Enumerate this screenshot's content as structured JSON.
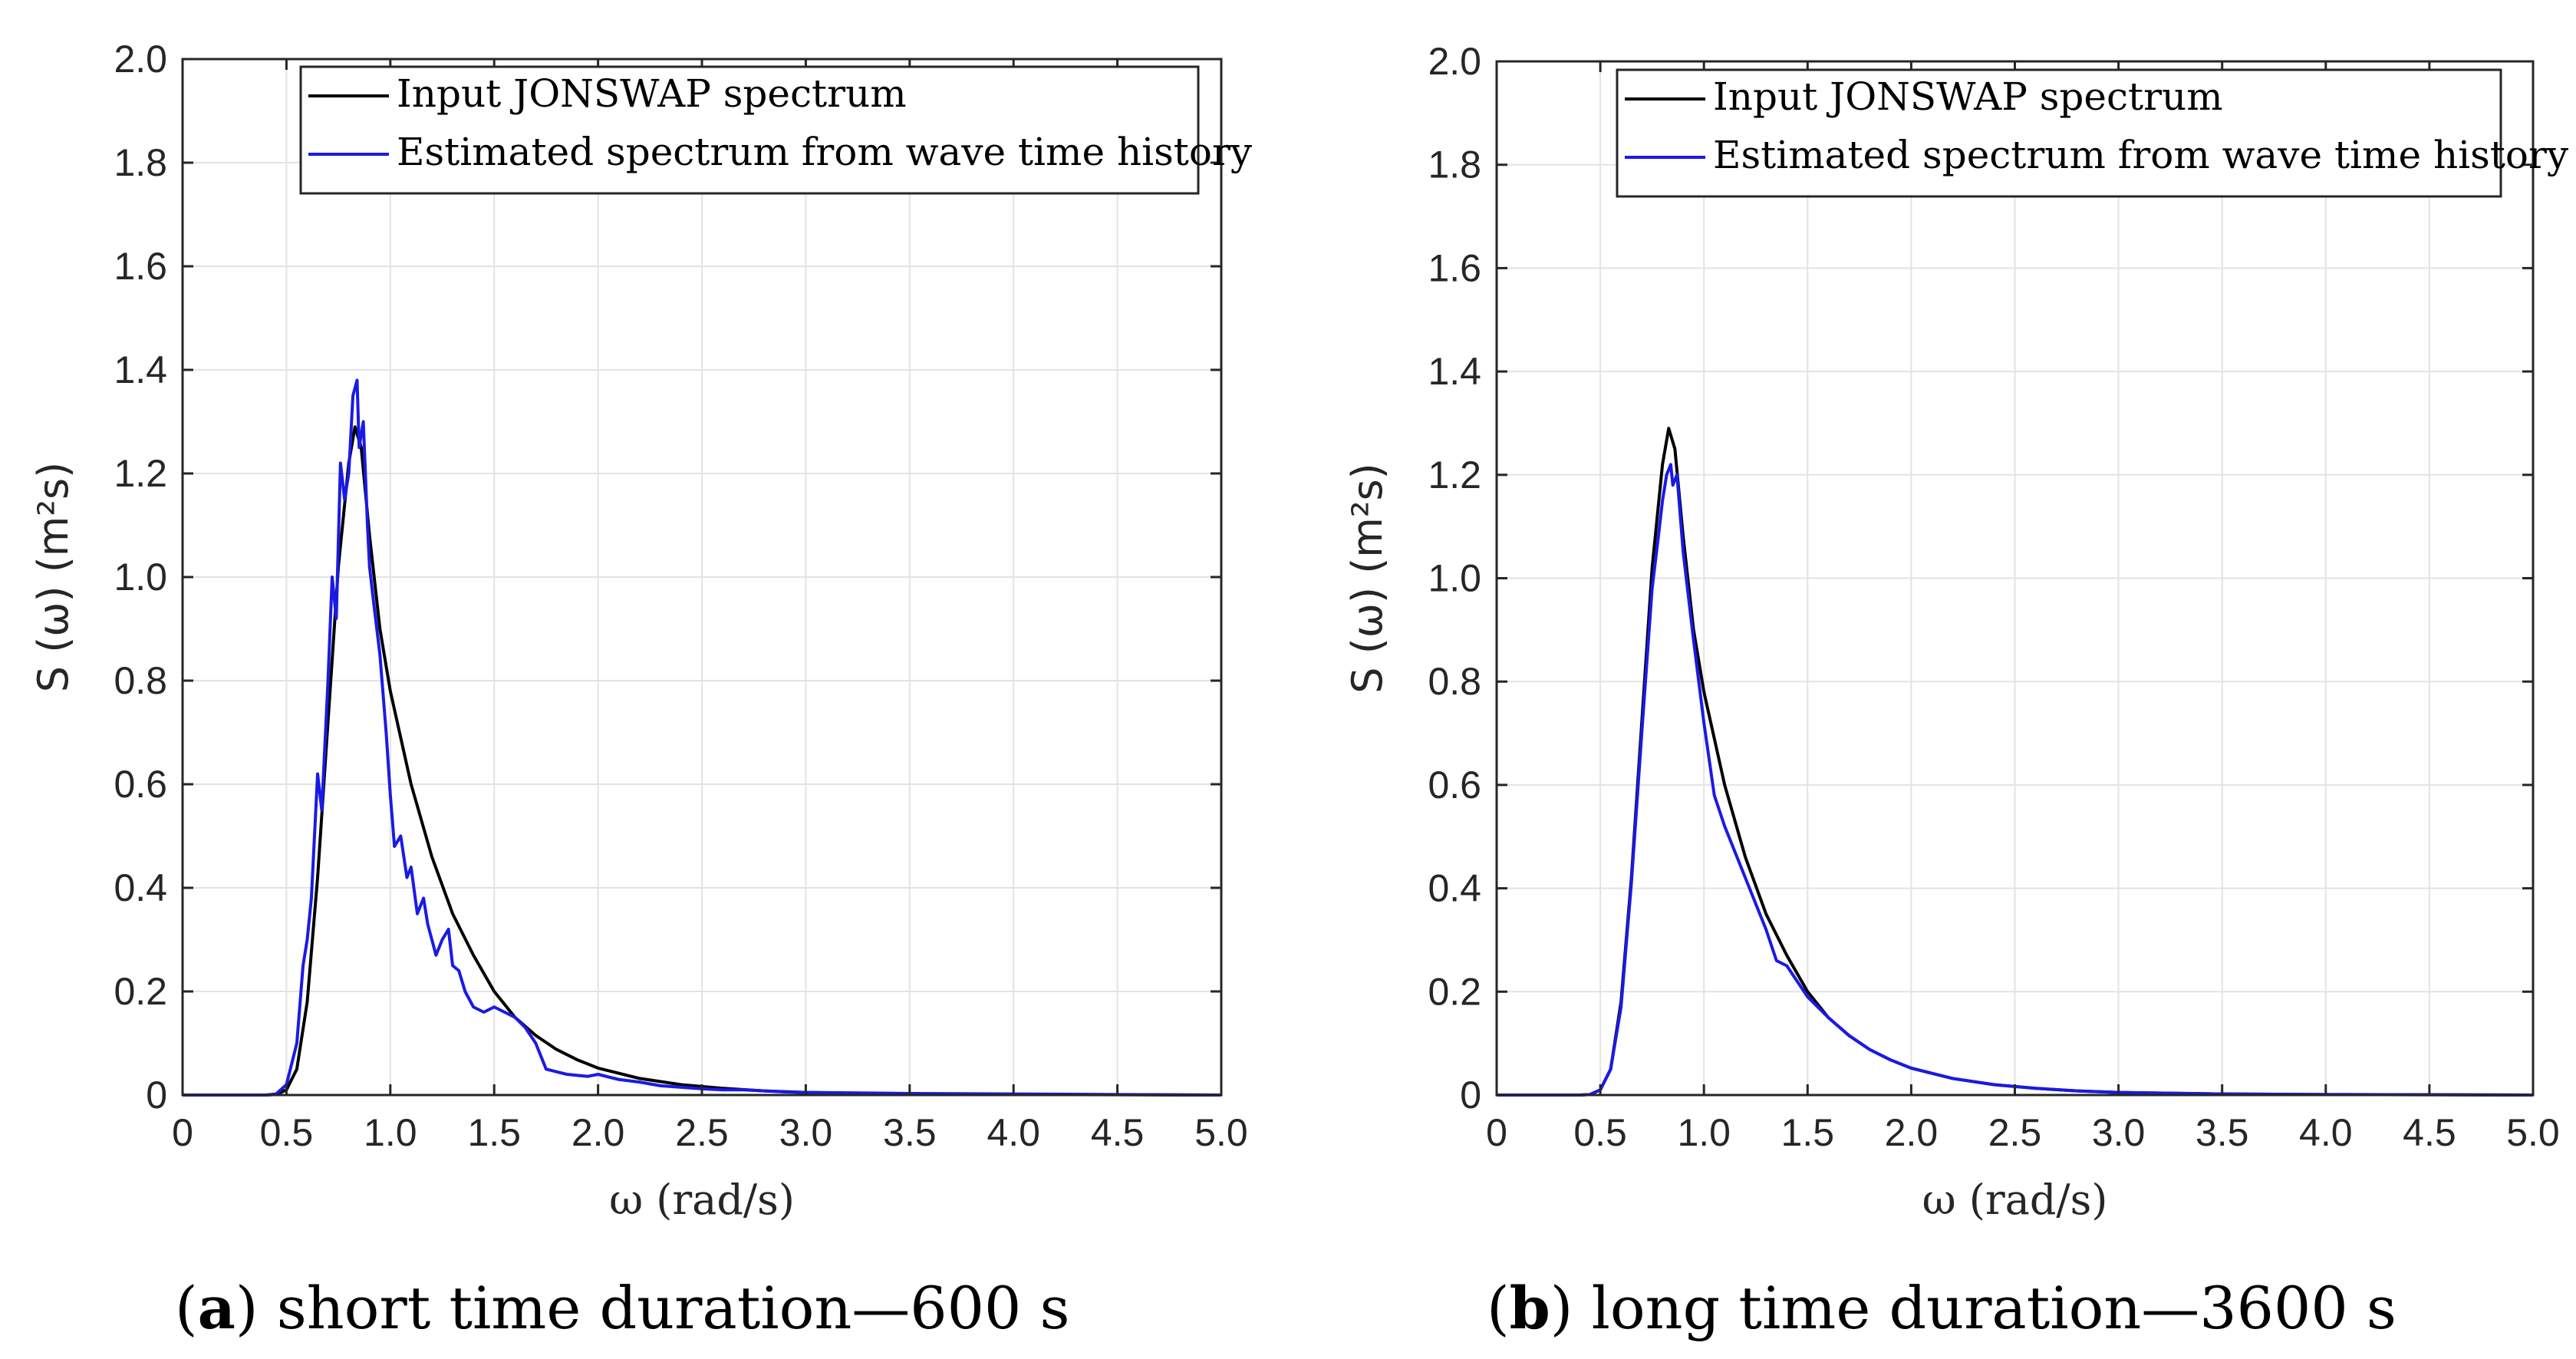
{
  "chart_data": [
    {
      "type": "line",
      "panel": "a",
      "ylabel": "S (ω) (m²s)",
      "xlabel": "ω (rad/s)",
      "xlim": [
        0,
        5.0
      ],
      "ylim": [
        0,
        2.0
      ],
      "grid": true,
      "legend_position": "top-right",
      "x_ticks": [
        "0",
        "0.5",
        "1.0",
        "1.5",
        "2.0",
        "2.5",
        "3.0",
        "3.5",
        "4.0",
        "4.5",
        "5.0"
      ],
      "y_ticks": [
        "0",
        "0.2",
        "0.4",
        "0.6",
        "0.8",
        "1.0",
        "1.2",
        "1.4",
        "1.6",
        "1.8",
        "2.0"
      ],
      "series": [
        {
          "name": "Input JONSWAP spectrum",
          "color": "#000000",
          "x": [
            0,
            0.4,
            0.45,
            0.5,
            0.55,
            0.6,
            0.65,
            0.7,
            0.75,
            0.8,
            0.83,
            0.86,
            0.9,
            0.95,
            1.0,
            1.1,
            1.2,
            1.3,
            1.4,
            1.5,
            1.6,
            1.7,
            1.8,
            1.9,
            2.0,
            2.2,
            2.4,
            2.6,
            2.8,
            3.0,
            3.5,
            4.0,
            4.5,
            5.0
          ],
          "y": [
            0,
            0,
            0.001,
            0.01,
            0.05,
            0.18,
            0.42,
            0.72,
            1.02,
            1.22,
            1.29,
            1.25,
            1.08,
            0.9,
            0.78,
            0.6,
            0.46,
            0.35,
            0.27,
            0.2,
            0.15,
            0.115,
            0.088,
            0.068,
            0.052,
            0.032,
            0.02,
            0.013,
            0.008,
            0.005,
            0.002,
            0.001,
            0.0005,
            0
          ]
        },
        {
          "name": "Estimated spectrum from wave time history",
          "color": "#1a1ae6",
          "x": [
            0,
            0.4,
            0.45,
            0.5,
            0.55,
            0.58,
            0.6,
            0.62,
            0.65,
            0.67,
            0.7,
            0.72,
            0.74,
            0.76,
            0.78,
            0.8,
            0.82,
            0.84,
            0.85,
            0.87,
            0.89,
            0.9,
            0.92,
            0.95,
            0.98,
            1.0,
            1.02,
            1.05,
            1.08,
            1.1,
            1.13,
            1.16,
            1.18,
            1.2,
            1.22,
            1.25,
            1.28,
            1.3,
            1.33,
            1.36,
            1.4,
            1.45,
            1.5,
            1.55,
            1.6,
            1.65,
            1.7,
            1.75,
            1.8,
            1.85,
            1.9,
            1.95,
            2.0,
            2.05,
            2.1,
            2.2,
            2.3,
            2.4,
            2.5,
            2.6,
            2.7,
            2.8,
            2.9,
            3.0,
            3.5,
            4.0,
            4.5,
            5.0
          ],
          "y": [
            0,
            0,
            0.002,
            0.02,
            0.1,
            0.25,
            0.3,
            0.38,
            0.62,
            0.55,
            0.8,
            1.0,
            0.92,
            1.22,
            1.15,
            1.2,
            1.35,
            1.38,
            1.25,
            1.3,
            1.1,
            1.02,
            0.95,
            0.85,
            0.7,
            0.58,
            0.48,
            0.5,
            0.42,
            0.44,
            0.35,
            0.38,
            0.33,
            0.3,
            0.27,
            0.3,
            0.32,
            0.25,
            0.24,
            0.2,
            0.17,
            0.16,
            0.17,
            0.16,
            0.15,
            0.13,
            0.1,
            0.05,
            0.045,
            0.04,
            0.038,
            0.036,
            0.04,
            0.035,
            0.03,
            0.025,
            0.018,
            0.015,
            0.012,
            0.01,
            0.01,
            0.008,
            0.006,
            0.005,
            0.003,
            0.002,
            0.001,
            0
          ]
        }
      ],
      "caption_label": "a",
      "caption_text": " short time duration—600 s"
    },
    {
      "type": "line",
      "panel": "b",
      "ylabel": "S (ω) (m²s)",
      "xlabel": "ω (rad/s)",
      "xlim": [
        0,
        5.0
      ],
      "ylim": [
        0,
        2.0
      ],
      "grid": true,
      "legend_position": "top-right",
      "x_ticks": [
        "0",
        "0.5",
        "1.0",
        "1.5",
        "2.0",
        "2.5",
        "3.0",
        "3.5",
        "4.0",
        "4.5",
        "5.0"
      ],
      "y_ticks": [
        "0",
        "0.2",
        "0.4",
        "0.6",
        "0.8",
        "1.0",
        "1.2",
        "1.4",
        "1.6",
        "1.8",
        "2.0"
      ],
      "series": [
        {
          "name": "Input JONSWAP spectrum",
          "color": "#000000",
          "x": [
            0,
            0.4,
            0.45,
            0.5,
            0.55,
            0.6,
            0.65,
            0.7,
            0.75,
            0.8,
            0.83,
            0.86,
            0.9,
            0.95,
            1.0,
            1.1,
            1.2,
            1.3,
            1.4,
            1.5,
            1.6,
            1.7,
            1.8,
            1.9,
            2.0,
            2.2,
            2.4,
            2.6,
            2.8,
            3.0,
            3.5,
            4.0,
            4.5,
            5.0
          ],
          "y": [
            0,
            0,
            0.001,
            0.01,
            0.05,
            0.18,
            0.42,
            0.72,
            1.02,
            1.22,
            1.29,
            1.25,
            1.08,
            0.9,
            0.78,
            0.6,
            0.46,
            0.35,
            0.27,
            0.2,
            0.15,
            0.115,
            0.088,
            0.068,
            0.052,
            0.032,
            0.02,
            0.013,
            0.008,
            0.005,
            0.002,
            0.001,
            0.0005,
            0
          ]
        },
        {
          "name": "Estimated spectrum from wave time history",
          "color": "#1a1ae6",
          "x": [
            0,
            0.4,
            0.45,
            0.5,
            0.55,
            0.6,
            0.65,
            0.7,
            0.75,
            0.78,
            0.8,
            0.82,
            0.84,
            0.85,
            0.87,
            0.9,
            0.95,
            1.0,
            1.05,
            1.1,
            1.2,
            1.3,
            1.35,
            1.4,
            1.5,
            1.6,
            1.7,
            1.8,
            1.9,
            2.0,
            2.2,
            2.4,
            2.6,
            2.8,
            3.0,
            3.5,
            4.0,
            4.5,
            5.0
          ],
          "y": [
            0,
            0,
            0.001,
            0.01,
            0.05,
            0.17,
            0.41,
            0.7,
            0.98,
            1.08,
            1.15,
            1.2,
            1.22,
            1.18,
            1.2,
            1.05,
            0.88,
            0.72,
            0.58,
            0.52,
            0.42,
            0.32,
            0.26,
            0.25,
            0.19,
            0.15,
            0.115,
            0.088,
            0.068,
            0.052,
            0.032,
            0.02,
            0.013,
            0.008,
            0.005,
            0.002,
            0.001,
            0.0005,
            0
          ]
        }
      ],
      "caption_label": "b",
      "caption_text": " long time duration—3600 s"
    }
  ]
}
